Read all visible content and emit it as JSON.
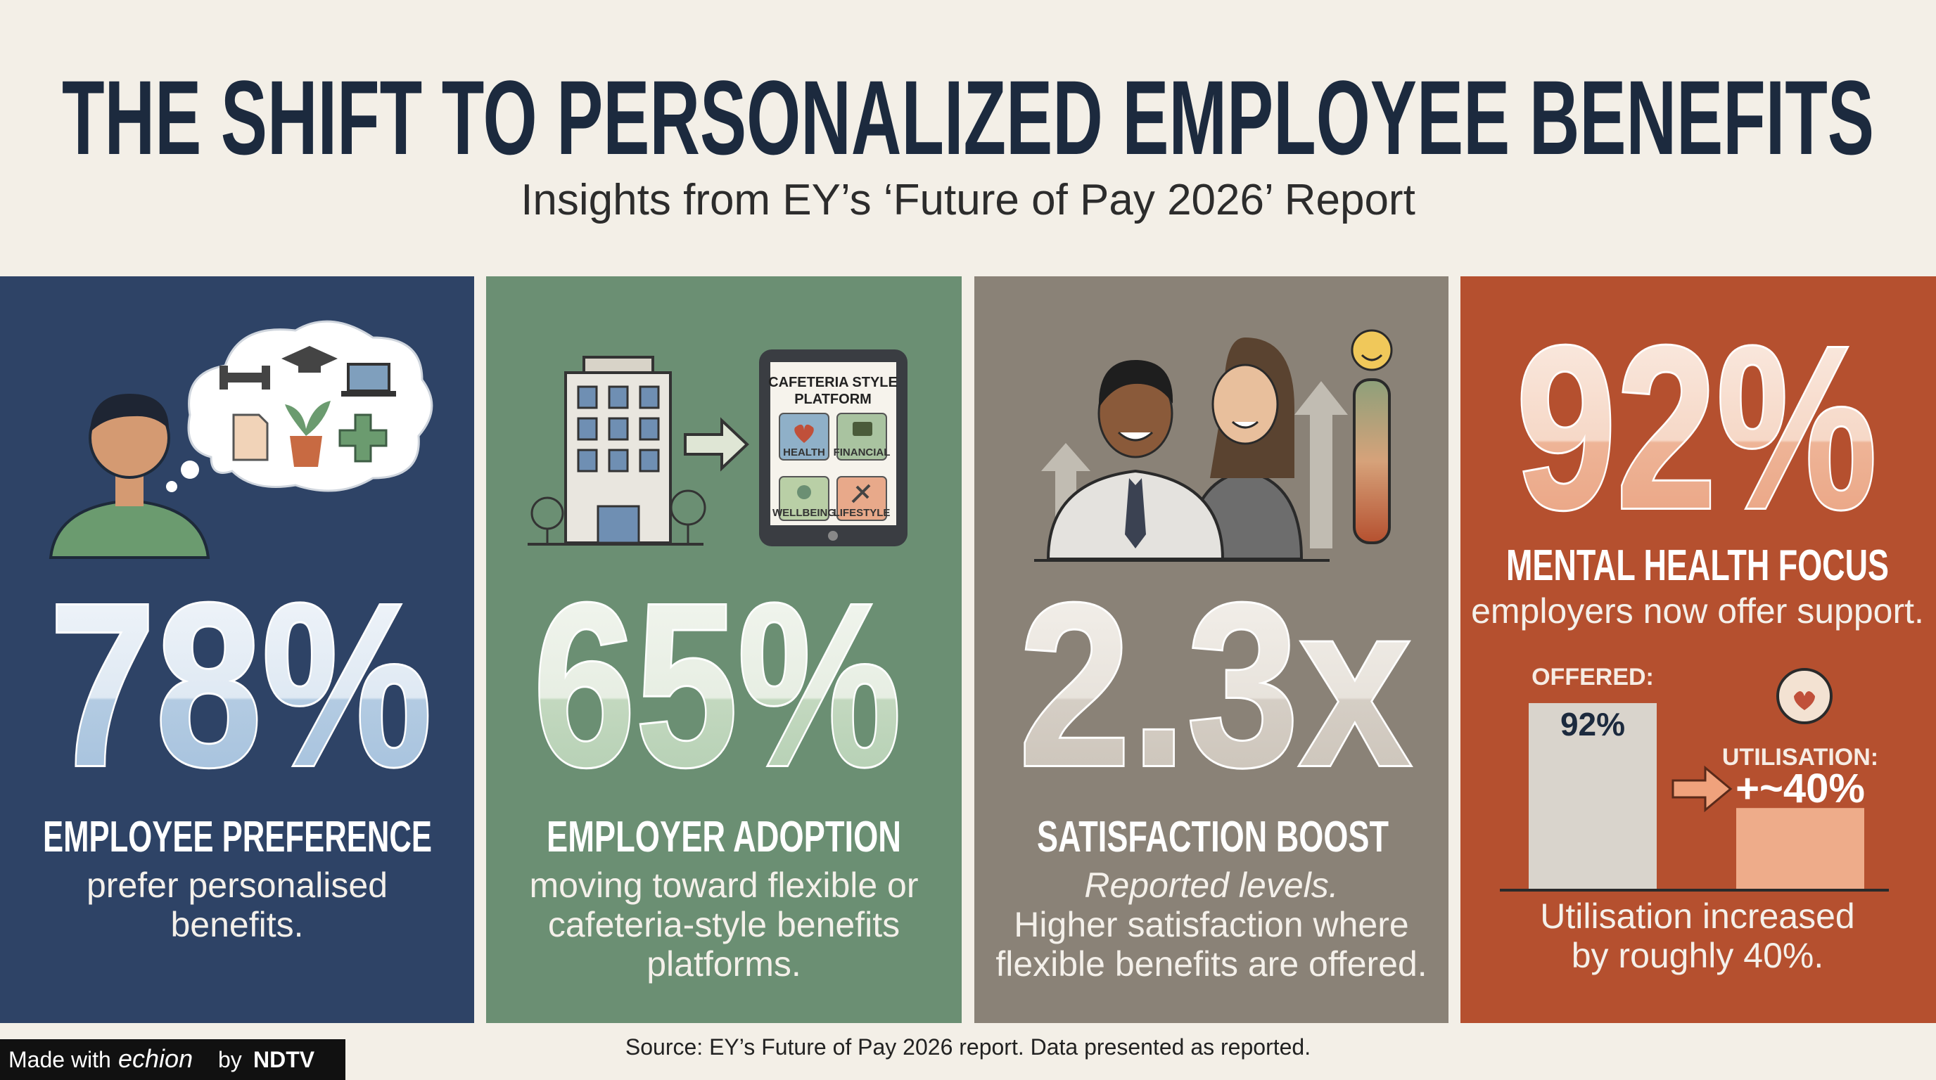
{
  "header": {
    "title": "THE SHIFT TO PERSONALIZED EMPLOYEE BENEFITS",
    "subtitle": "Insights from EY’s ‘Future of Pay 2026’ Report"
  },
  "panels": [
    {
      "stat": "78%",
      "heading": "EMPLOYEE PREFERENCE",
      "lines": [
        "prefer personalised",
        "benefits."
      ]
    },
    {
      "stat": "65%",
      "heading": "EMPLOYER ADOPTION",
      "lines": [
        "moving toward flexible or",
        "cafeteria-style benefits",
        "platforms."
      ],
      "platform": {
        "title": [
          "CAFETERIA STYLE",
          "PLATFORM"
        ],
        "tiles": [
          "HEALTH",
          "FINANCIAL",
          "WELLBEING",
          "LIFESTYLE"
        ]
      }
    },
    {
      "stat": "2.3x",
      "heading": "SATISFACTION BOOST",
      "note": "Reported levels.",
      "lines": [
        "Higher satisfaction where",
        "flexible benefits are offered."
      ]
    },
    {
      "stat": "92%",
      "heading": "MENTAL HEALTH FOCUS",
      "lines": [
        "employers now offer support."
      ],
      "chart": {
        "bars": [
          {
            "label": "OFFERED:",
            "value": 92,
            "value_label": "92%"
          },
          {
            "label": "UTILISATION:",
            "value": 40,
            "value_label": "+~40%"
          }
        ]
      },
      "footer_lines": [
        "Utilisation increased",
        "by roughly 40%."
      ]
    }
  ],
  "source": "Source: EY’s Future of Pay 2026 report. Data presented as reported.",
  "badge": {
    "prefix": "Made with",
    "brand": "echion",
    "by": "by",
    "network": "NDTV"
  }
}
